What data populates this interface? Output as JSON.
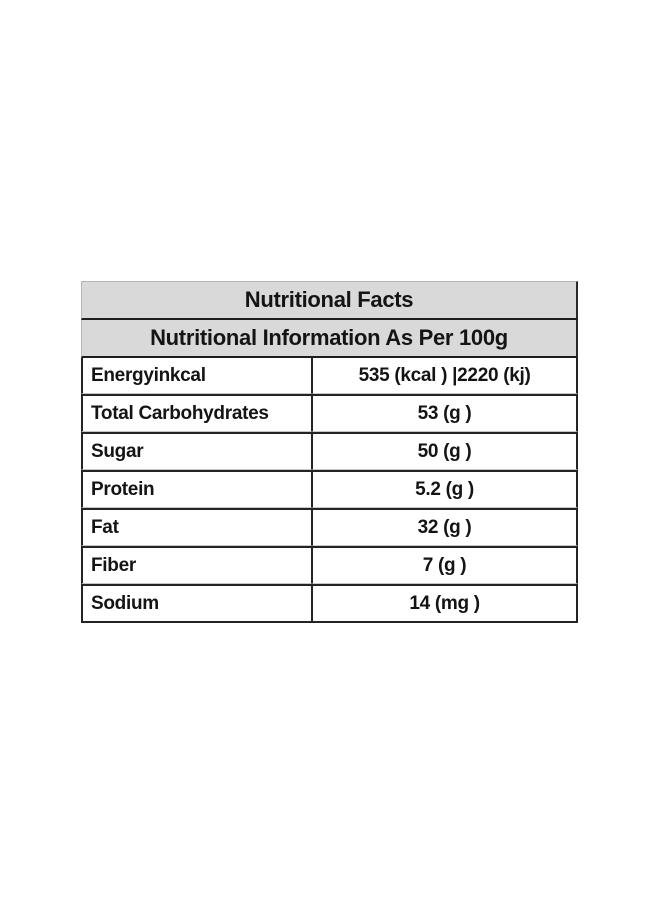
{
  "nutrition_table": {
    "title": "Nutritional Facts",
    "subtitle": "Nutritional Information As Per 100g",
    "rows": [
      {
        "label": "Energyinkcal",
        "value": "535 (kcal ) |2220 (kj)"
      },
      {
        "label": "Total Carbohydrates",
        "value": "53 (g )"
      },
      {
        "label": "Sugar",
        "value": "50 (g )"
      },
      {
        "label": "Protein",
        "value": "5.2 (g )"
      },
      {
        "label": "Fat",
        "value": "32 (g )"
      },
      {
        "label": "Fiber",
        "value": "7 (g )"
      },
      {
        "label": "Sodium",
        "value": "14 (mg )"
      }
    ],
    "colors": {
      "header_bg": "#d9d9d9",
      "text": "#141414",
      "border_dark": "#242424",
      "border_light": "#b5b5b5",
      "page_bg": "#ffffff"
    }
  }
}
